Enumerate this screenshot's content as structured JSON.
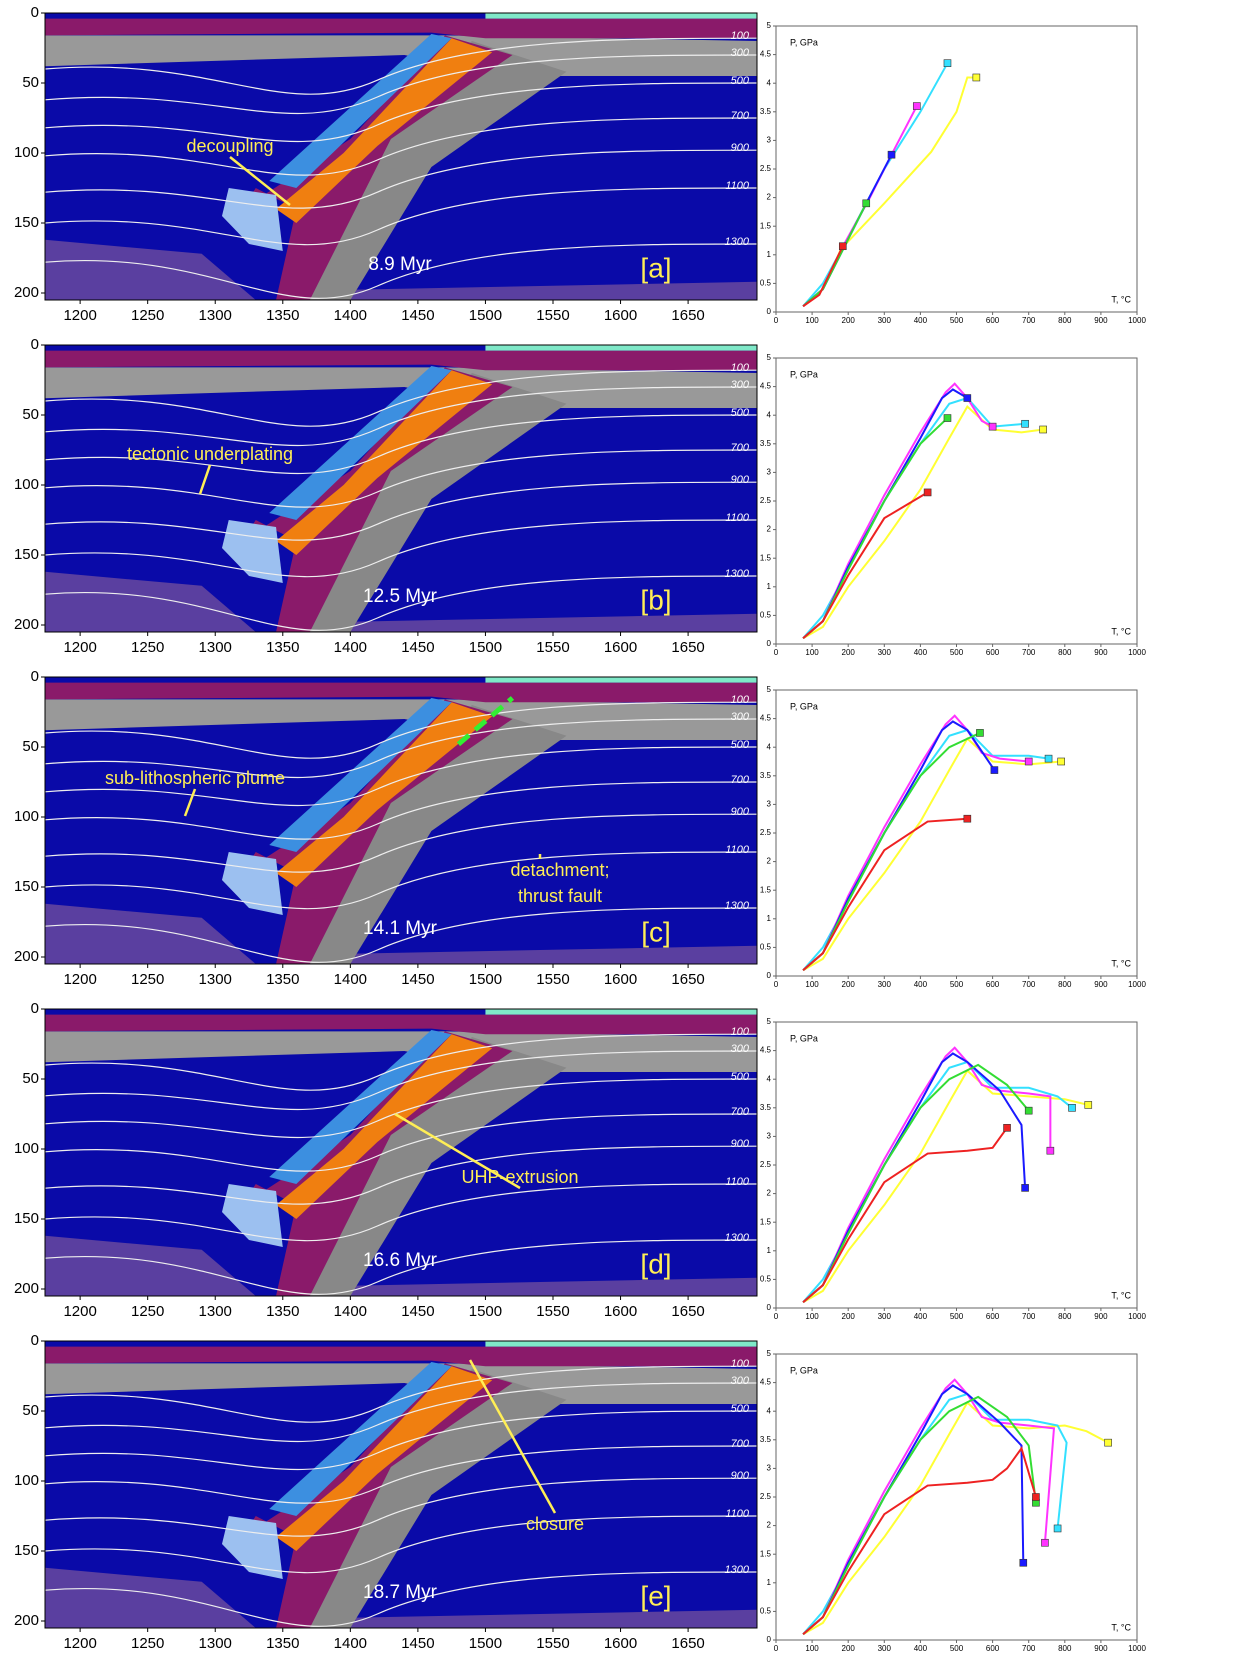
{
  "model_axes": {
    "xlim": [
      1174,
      1701
    ],
    "xticks": [
      1200,
      1250,
      1300,
      1350,
      1400,
      1450,
      1500,
      1550,
      1600,
      1650
    ],
    "ylim": [
      0,
      205
    ],
    "yticks": [
      0,
      50,
      100,
      150,
      200
    ],
    "isotherms": [
      100,
      300,
      500,
      700,
      900,
      1100,
      1300
    ]
  },
  "pt_axes": {
    "type": "line",
    "xlabel": "T, °C",
    "ylabel": "P, GPa",
    "xlim": [
      0,
      1000
    ],
    "xticks": [
      0,
      100,
      200,
      300,
      400,
      500,
      600,
      700,
      800,
      900,
      1000
    ],
    "ylim": [
      0,
      5
    ],
    "yticks": [
      0,
      0.5,
      1,
      1.5,
      2,
      2.5,
      3,
      3.5,
      4,
      4.5,
      5
    ]
  },
  "panels": [
    {
      "label": "[a]",
      "time": "8.9 Myr",
      "annotations": [
        "decoupling"
      ],
      "series": [
        {
          "color": "#ffff33",
          "x": [
            75,
            130,
            180,
            300,
            430,
            500,
            530,
            555
          ],
          "y": [
            0.1,
            0.4,
            1.1,
            1.9,
            2.8,
            3.5,
            4.1,
            4.1
          ]
        },
        {
          "color": "#33e0ff",
          "x": [
            75,
            130,
            200,
            300,
            400,
            475
          ],
          "y": [
            0.1,
            0.5,
            1.3,
            2.5,
            3.5,
            4.35
          ]
        },
        {
          "color": "#ff33ff",
          "x": [
            75,
            130,
            190,
            260,
            320,
            390
          ],
          "y": [
            0.1,
            0.4,
            1.2,
            2,
            2.75,
            3.6
          ]
        },
        {
          "color": "#1a1aff",
          "x": [
            75,
            130,
            190,
            250,
            320
          ],
          "y": [
            0.1,
            0.4,
            1.15,
            1.9,
            2.75
          ]
        },
        {
          "color": "#33dd33",
          "x": [
            75,
            130,
            190,
            250
          ],
          "y": [
            0.1,
            0.4,
            1.15,
            1.9
          ]
        },
        {
          "color": "#ee2222",
          "x": [
            75,
            120,
            185
          ],
          "y": [
            0.1,
            0.3,
            1.15
          ]
        }
      ]
    },
    {
      "label": "[b]",
      "time": "12.5 Myr",
      "annotations": [
        "tectonic underplating"
      ],
      "series": [
        {
          "color": "#ffff33",
          "x": [
            75,
            130,
            200,
            300,
            400,
            480,
            530,
            600,
            680,
            740
          ],
          "y": [
            0.1,
            0.3,
            1,
            1.8,
            2.7,
            3.6,
            4.15,
            3.75,
            3.7,
            3.75
          ]
        },
        {
          "color": "#33e0ff",
          "x": [
            75,
            130,
            200,
            300,
            400,
            480,
            530,
            600,
            690
          ],
          "y": [
            0.1,
            0.5,
            1.3,
            2.5,
            3.5,
            4.2,
            4.3,
            3.8,
            3.85
          ]
        },
        {
          "color": "#ff33ff",
          "x": [
            75,
            130,
            200,
            300,
            400,
            470,
            495,
            530,
            570,
            600
          ],
          "y": [
            0.1,
            0.4,
            1.4,
            2.6,
            3.7,
            4.4,
            4.55,
            4.3,
            3.9,
            3.8
          ]
        },
        {
          "color": "#1a1aff",
          "x": [
            75,
            130,
            200,
            300,
            400,
            460,
            490,
            530
          ],
          "y": [
            0.1,
            0.4,
            1.35,
            2.5,
            3.6,
            4.3,
            4.45,
            4.3
          ]
        },
        {
          "color": "#33dd33",
          "x": [
            75,
            130,
            200,
            300,
            400,
            475
          ],
          "y": [
            0.1,
            0.4,
            1.3,
            2.5,
            3.5,
            3.95
          ]
        },
        {
          "color": "#ee2222",
          "x": [
            75,
            130,
            200,
            300,
            420
          ],
          "y": [
            0.1,
            0.4,
            1.2,
            2.2,
            2.65
          ]
        }
      ]
    },
    {
      "label": "[c]",
      "time": "14.1 Myr",
      "annotations": [
        "sub-lithospheric plume",
        "detachment;",
        "thrust fault"
      ],
      "series": [
        {
          "color": "#ffff33",
          "x": [
            75,
            130,
            200,
            300,
            400,
            480,
            530,
            600,
            700,
            790
          ],
          "y": [
            0.1,
            0.3,
            1,
            1.8,
            2.7,
            3.6,
            4.15,
            3.75,
            3.7,
            3.75
          ]
        },
        {
          "color": "#33e0ff",
          "x": [
            75,
            130,
            200,
            300,
            400,
            480,
            530,
            600,
            700,
            755
          ],
          "y": [
            0.1,
            0.5,
            1.3,
            2.5,
            3.5,
            4.2,
            4.3,
            3.85,
            3.85,
            3.8
          ]
        },
        {
          "color": "#ff33ff",
          "x": [
            75,
            130,
            200,
            300,
            400,
            470,
            495,
            530,
            570,
            620,
            700
          ],
          "y": [
            0.1,
            0.4,
            1.4,
            2.6,
            3.7,
            4.4,
            4.55,
            4.3,
            3.9,
            3.8,
            3.75
          ]
        },
        {
          "color": "#1a1aff",
          "x": [
            75,
            130,
            200,
            300,
            400,
            460,
            490,
            530,
            605
          ],
          "y": [
            0.1,
            0.4,
            1.35,
            2.5,
            3.6,
            4.3,
            4.45,
            4.3,
            3.6
          ]
        },
        {
          "color": "#33dd33",
          "x": [
            75,
            130,
            200,
            300,
            400,
            480,
            565
          ],
          "y": [
            0.1,
            0.4,
            1.3,
            2.5,
            3.5,
            4,
            4.25
          ]
        },
        {
          "color": "#ee2222",
          "x": [
            75,
            130,
            200,
            300,
            420,
            530
          ],
          "y": [
            0.1,
            0.4,
            1.2,
            2.2,
            2.7,
            2.75
          ]
        }
      ]
    },
    {
      "label": "[d]",
      "time": "16.6 Myr",
      "annotations": [
        "UHP-extrusion"
      ],
      "series": [
        {
          "color": "#ffff33",
          "x": [
            75,
            130,
            200,
            300,
            400,
            480,
            530,
            600,
            700,
            800,
            865
          ],
          "y": [
            0.1,
            0.3,
            1,
            1.8,
            2.7,
            3.6,
            4.15,
            3.75,
            3.7,
            3.65,
            3.55
          ]
        },
        {
          "color": "#33e0ff",
          "x": [
            75,
            130,
            200,
            300,
            400,
            480,
            530,
            600,
            700,
            780,
            820
          ],
          "y": [
            0.1,
            0.5,
            1.3,
            2.5,
            3.5,
            4.2,
            4.3,
            3.85,
            3.85,
            3.7,
            3.5
          ]
        },
        {
          "color": "#ff33ff",
          "x": [
            75,
            130,
            200,
            300,
            400,
            470,
            495,
            530,
            570,
            620,
            700,
            760,
            760
          ],
          "y": [
            0.1,
            0.4,
            1.4,
            2.6,
            3.7,
            4.4,
            4.55,
            4.3,
            3.9,
            3.8,
            3.75,
            3.7,
            2.75
          ]
        },
        {
          "color": "#1a1aff",
          "x": [
            75,
            130,
            200,
            300,
            400,
            460,
            490,
            530,
            620,
            680,
            690
          ],
          "y": [
            0.1,
            0.4,
            1.35,
            2.5,
            3.6,
            4.3,
            4.45,
            4.3,
            3.8,
            3.2,
            2.1
          ]
        },
        {
          "color": "#33dd33",
          "x": [
            75,
            130,
            200,
            300,
            400,
            480,
            560,
            640,
            700
          ],
          "y": [
            0.1,
            0.4,
            1.3,
            2.5,
            3.5,
            4,
            4.25,
            3.9,
            3.45
          ]
        },
        {
          "color": "#ee2222",
          "x": [
            75,
            130,
            200,
            300,
            420,
            530,
            600,
            640
          ],
          "y": [
            0.1,
            0.4,
            1.2,
            2.2,
            2.7,
            2.75,
            2.8,
            3.15
          ]
        }
      ]
    },
    {
      "label": "[e]",
      "time": "18.7 Myr",
      "annotations": [
        "closure"
      ],
      "series": [
        {
          "color": "#ffff33",
          "x": [
            75,
            130,
            200,
            300,
            400,
            480,
            530,
            600,
            700,
            800,
            860,
            920
          ],
          "y": [
            0.1,
            0.3,
            1,
            1.8,
            2.7,
            3.6,
            4.15,
            3.75,
            3.7,
            3.75,
            3.65,
            3.45
          ]
        },
        {
          "color": "#33e0ff",
          "x": [
            75,
            130,
            200,
            300,
            400,
            480,
            530,
            600,
            700,
            780,
            805,
            780
          ],
          "y": [
            0.1,
            0.5,
            1.3,
            2.5,
            3.5,
            4.2,
            4.3,
            3.85,
            3.85,
            3.75,
            3.45,
            1.95
          ]
        },
        {
          "color": "#ff33ff",
          "x": [
            75,
            130,
            200,
            300,
            400,
            470,
            495,
            530,
            570,
            620,
            700,
            770,
            745
          ],
          "y": [
            0.1,
            0.4,
            1.4,
            2.6,
            3.7,
            4.4,
            4.55,
            4.3,
            3.9,
            3.8,
            3.75,
            3.7,
            1.7
          ]
        },
        {
          "color": "#1a1aff",
          "x": [
            75,
            130,
            200,
            300,
            400,
            460,
            490,
            530,
            620,
            680,
            685
          ],
          "y": [
            0.1,
            0.4,
            1.35,
            2.5,
            3.6,
            4.3,
            4.45,
            4.3,
            3.8,
            3.4,
            1.35
          ]
        },
        {
          "color": "#33dd33",
          "x": [
            75,
            130,
            200,
            300,
            400,
            480,
            560,
            640,
            700,
            720
          ],
          "y": [
            0.1,
            0.4,
            1.3,
            2.5,
            3.5,
            4,
            4.25,
            3.9,
            3.4,
            2.4
          ]
        },
        {
          "color": "#ee2222",
          "x": [
            75,
            130,
            200,
            300,
            420,
            530,
            600,
            640,
            680,
            720
          ],
          "y": [
            0.1,
            0.4,
            1.2,
            2.2,
            2.7,
            2.75,
            2.8,
            3,
            3.35,
            2.5
          ]
        }
      ]
    }
  ]
}
